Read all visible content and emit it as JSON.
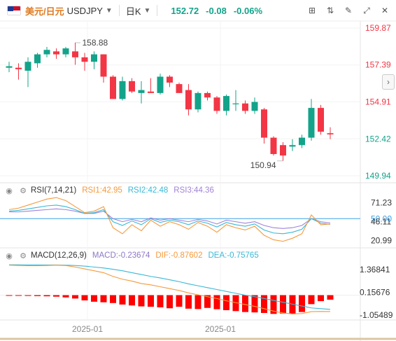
{
  "header": {
    "pair_cn": "美元/日元",
    "pair_code": "USDJPY",
    "timeframe": "日K",
    "price": "152.72",
    "change": "-0.08",
    "change_pct": "-0.06%"
  },
  "icons": {
    "flag": "us-flag-icon",
    "dropdown": "chevron-down-icon",
    "tools": [
      "crosshair-icon",
      "indicator-icon",
      "drawing-icon",
      "fullscreen-icon",
      "close-icon"
    ],
    "side": "chevron-right-icon",
    "eye": "eye-icon",
    "settings": "gear-icon"
  },
  "colors": {
    "up": "#13a38a",
    "down": "#f23645",
    "price_axis_red": "#f23645",
    "price_axis_green": "#13a38a",
    "rsi1": "#f59a3c",
    "rsi2": "#39b9d6",
    "rsi3": "#a183d8",
    "macd_bar": "#ff0000",
    "dif": "#f59a3c",
    "dea": "#39b9d6",
    "ref_line": "#3aa0e6"
  },
  "chart_data": {
    "type": "candlestick",
    "price_axis": [
      {
        "value": "159.87",
        "color": "red"
      },
      {
        "value": "157.39",
        "color": "red"
      },
      {
        "value": "154.91",
        "color": "red"
      },
      {
        "value": "152.42",
        "color": "green"
      },
      {
        "value": "149.94",
        "color": "green"
      }
    ],
    "ylim": [
      149.94,
      159.87
    ],
    "annotations": {
      "high": "158.88",
      "low": "150.94"
    },
    "x_labels": [
      "2025-01",
      "2025-01"
    ],
    "candles": [
      {
        "o": 157.2,
        "h": 157.6,
        "l": 156.9,
        "c": 157.3
      },
      {
        "o": 157.2,
        "h": 157.5,
        "l": 156.4,
        "c": 157.1
      },
      {
        "o": 157.0,
        "h": 157.9,
        "l": 155.9,
        "c": 157.6
      },
      {
        "o": 157.5,
        "h": 158.2,
        "l": 157.2,
        "c": 158.1
      },
      {
        "o": 158.1,
        "h": 158.6,
        "l": 157.9,
        "c": 158.4
      },
      {
        "o": 158.3,
        "h": 158.5,
        "l": 157.8,
        "c": 158.1
      },
      {
        "o": 158.1,
        "h": 158.6,
        "l": 157.9,
        "c": 158.5
      },
      {
        "o": 158.3,
        "h": 158.88,
        "l": 157.4,
        "c": 157.9
      },
      {
        "o": 157.9,
        "h": 158.2,
        "l": 157.0,
        "c": 157.6
      },
      {
        "o": 157.6,
        "h": 158.3,
        "l": 157.1,
        "c": 158.1
      },
      {
        "o": 158.1,
        "h": 158.1,
        "l": 156.2,
        "c": 156.6
      },
      {
        "o": 156.6,
        "h": 156.7,
        "l": 155.1,
        "c": 155.1
      },
      {
        "o": 155.1,
        "h": 156.6,
        "l": 155.0,
        "c": 156.3
      },
      {
        "o": 156.3,
        "h": 156.5,
        "l": 155.5,
        "c": 155.6
      },
      {
        "o": 155.5,
        "h": 156.3,
        "l": 154.8,
        "c": 155.7
      },
      {
        "o": 155.6,
        "h": 156.5,
        "l": 155.5,
        "c": 155.5
      },
      {
        "o": 155.5,
        "h": 156.8,
        "l": 155.4,
        "c": 156.6
      },
      {
        "o": 156.6,
        "h": 156.7,
        "l": 155.9,
        "c": 156.2
      },
      {
        "o": 156.1,
        "h": 156.2,
        "l": 155.5,
        "c": 155.5
      },
      {
        "o": 155.7,
        "h": 156.1,
        "l": 154.0,
        "c": 154.4
      },
      {
        "o": 154.4,
        "h": 155.6,
        "l": 154.2,
        "c": 155.5
      },
      {
        "o": 155.5,
        "h": 155.6,
        "l": 155.0,
        "c": 155.2
      },
      {
        "o": 155.2,
        "h": 155.3,
        "l": 154.1,
        "c": 154.3
      },
      {
        "o": 154.3,
        "h": 155.4,
        "l": 154.0,
        "c": 155.3
      },
      {
        "o": 154.8,
        "h": 155.7,
        "l": 154.3,
        "c": 154.8
      },
      {
        "o": 154.8,
        "h": 155.0,
        "l": 154.1,
        "c": 154.3
      },
      {
        "o": 154.3,
        "h": 155.2,
        "l": 154.1,
        "c": 154.9
      },
      {
        "o": 154.4,
        "h": 154.5,
        "l": 152.1,
        "c": 152.5
      },
      {
        "o": 152.5,
        "h": 152.6,
        "l": 151.3,
        "c": 151.4
      },
      {
        "o": 152.0,
        "h": 152.2,
        "l": 150.94,
        "c": 151.3
      },
      {
        "o": 151.9,
        "h": 152.4,
        "l": 151.6,
        "c": 152.0
      },
      {
        "o": 152.0,
        "h": 152.7,
        "l": 151.8,
        "c": 152.5
      },
      {
        "o": 152.5,
        "h": 155.1,
        "l": 152.3,
        "c": 154.5
      },
      {
        "o": 154.5,
        "h": 154.7,
        "l": 152.7,
        "c": 152.9
      },
      {
        "o": 152.8,
        "h": 153.2,
        "l": 152.4,
        "c": 152.72
      }
    ]
  },
  "rsi": {
    "title": "RSI(7,14,21)",
    "rsi1_label": "RSI1:42.95",
    "rsi2_label": "RSI2:42.48",
    "rsi3_label": "RSI3:44.36",
    "axis": [
      "71.23",
      "50.00",
      "46.11",
      "20.99"
    ],
    "ylim": [
      15,
      80
    ],
    "ref_value": 50,
    "rsi1": [
      62,
      64,
      68,
      72,
      76,
      78,
      74,
      66,
      58,
      60,
      66,
      38,
      30,
      42,
      34,
      48,
      40,
      46,
      42,
      36,
      45,
      40,
      32,
      42,
      38,
      35,
      40,
      28,
      22,
      20,
      24,
      30,
      55,
      42,
      42.95
    ],
    "rsi2": [
      60,
      61,
      63,
      65,
      67,
      68,
      66,
      62,
      57,
      58,
      62,
      46,
      41,
      47,
      42,
      50,
      45,
      48,
      46,
      42,
      47,
      44,
      39,
      45,
      42,
      40,
      43,
      35,
      31,
      30,
      32,
      36,
      50,
      44,
      42.48
    ],
    "rsi3": [
      59,
      59,
      60,
      61,
      62,
      63,
      62,
      60,
      57,
      57,
      60,
      50,
      46,
      49,
      46,
      51,
      48,
      50,
      48,
      46,
      49,
      47,
      43,
      48,
      46,
      44,
      46,
      41,
      38,
      37,
      38,
      41,
      50,
      46,
      44.36
    ]
  },
  "macd": {
    "title": "MACD(12,26,9)",
    "macd_label": "MACD:-0.23674",
    "dif_label": "DIF:-0.87602",
    "dea_label": "DEA:-0.75765",
    "axis": [
      "1.36841",
      "0.15676",
      "-1.05489"
    ],
    "ylim": [
      -1.25,
      1.85
    ],
    "hist": [
      -0.03,
      -0.03,
      -0.04,
      -0.05,
      -0.06,
      -0.08,
      -0.12,
      -0.18,
      -0.28,
      -0.35,
      -0.38,
      -0.42,
      -0.5,
      -0.55,
      -0.6,
      -0.62,
      -0.65,
      -0.7,
      -0.62,
      -0.72,
      -0.74,
      -0.68,
      -0.75,
      -0.8,
      -0.85,
      -0.9,
      -0.92,
      -0.95,
      -1.0,
      -0.98,
      -1.0,
      -0.9,
      -0.48,
      -0.32,
      -0.24
    ],
    "dif": [
      1.6,
      1.58,
      1.57,
      1.57,
      1.58,
      1.6,
      1.58,
      1.5,
      1.4,
      1.3,
      1.2,
      1.0,
      0.85,
      0.75,
      0.62,
      0.55,
      0.45,
      0.35,
      0.25,
      0.12,
      0.02,
      -0.08,
      -0.18,
      -0.3,
      -0.4,
      -0.5,
      -0.6,
      -0.72,
      -0.85,
      -0.95,
      -1.0,
      -0.98,
      -0.88,
      -0.87,
      -0.876
    ],
    "dea": [
      1.62,
      1.62,
      1.61,
      1.61,
      1.61,
      1.61,
      1.6,
      1.58,
      1.55,
      1.5,
      1.45,
      1.38,
      1.3,
      1.2,
      1.1,
      1.0,
      0.92,
      0.82,
      0.72,
      0.6,
      0.5,
      0.4,
      0.3,
      0.2,
      0.1,
      0.0,
      -0.08,
      -0.18,
      -0.28,
      -0.38,
      -0.48,
      -0.58,
      -0.68,
      -0.72,
      -0.758
    ]
  }
}
